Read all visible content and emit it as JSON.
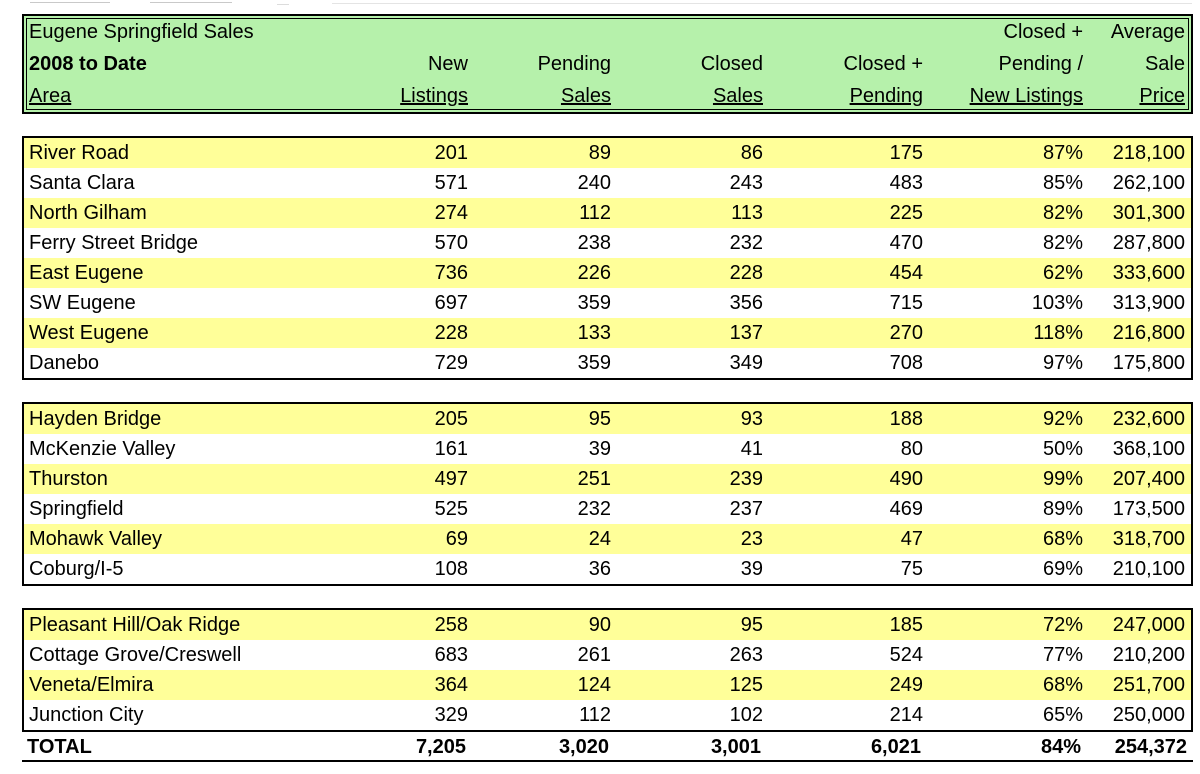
{
  "header": {
    "title": "Eugene Springfield Sales",
    "subtitle": "2008 to Date",
    "area_label": "Area",
    "columns": [
      {
        "line1": "",
        "line2": "New",
        "line3": "Listings"
      },
      {
        "line1": "",
        "line2": "Pending",
        "line3": "Sales"
      },
      {
        "line1": "",
        "line2": "Closed",
        "line3": "Sales"
      },
      {
        "line1": "",
        "line2": "Closed +",
        "line3": "Pending"
      },
      {
        "line1": "Closed +",
        "line2": "Pending /",
        "line3": "New Listings"
      },
      {
        "line1": "Average",
        "line2": "Sale",
        "line3": "Price"
      }
    ]
  },
  "groups": [
    {
      "rows": [
        {
          "area": "River Road",
          "new_listings": "201",
          "pending_sales": "89",
          "closed_sales": "86",
          "closed_pending": "175",
          "ratio": "87%",
          "avg_price": "218,100"
        },
        {
          "area": "Santa Clara",
          "new_listings": "571",
          "pending_sales": "240",
          "closed_sales": "243",
          "closed_pending": "483",
          "ratio": "85%",
          "avg_price": "262,100"
        },
        {
          "area": "North Gilham",
          "new_listings": "274",
          "pending_sales": "112",
          "closed_sales": "113",
          "closed_pending": "225",
          "ratio": "82%",
          "avg_price": "301,300"
        },
        {
          "area": "Ferry Street Bridge",
          "new_listings": "570",
          "pending_sales": "238",
          "closed_sales": "232",
          "closed_pending": "470",
          "ratio": "82%",
          "avg_price": "287,800"
        },
        {
          "area": "East Eugene",
          "new_listings": "736",
          "pending_sales": "226",
          "closed_sales": "228",
          "closed_pending": "454",
          "ratio": "62%",
          "avg_price": "333,600"
        },
        {
          "area": "SW Eugene",
          "new_listings": "697",
          "pending_sales": "359",
          "closed_sales": "356",
          "closed_pending": "715",
          "ratio": "103%",
          "avg_price": "313,900"
        },
        {
          "area": "West Eugene",
          "new_listings": "228",
          "pending_sales": "133",
          "closed_sales": "137",
          "closed_pending": "270",
          "ratio": "118%",
          "avg_price": "216,800"
        },
        {
          "area": "Danebo",
          "new_listings": "729",
          "pending_sales": "359",
          "closed_sales": "349",
          "closed_pending": "708",
          "ratio": "97%",
          "avg_price": "175,800"
        }
      ]
    },
    {
      "rows": [
        {
          "area": "Hayden Bridge",
          "new_listings": "205",
          "pending_sales": "95",
          "closed_sales": "93",
          "closed_pending": "188",
          "ratio": "92%",
          "avg_price": "232,600"
        },
        {
          "area": "McKenzie Valley",
          "new_listings": "161",
          "pending_sales": "39",
          "closed_sales": "41",
          "closed_pending": "80",
          "ratio": "50%",
          "avg_price": "368,100"
        },
        {
          "area": "Thurston",
          "new_listings": "497",
          "pending_sales": "251",
          "closed_sales": "239",
          "closed_pending": "490",
          "ratio": "99%",
          "avg_price": "207,400"
        },
        {
          "area": "Springfield",
          "new_listings": "525",
          "pending_sales": "232",
          "closed_sales": "237",
          "closed_pending": "469",
          "ratio": "89%",
          "avg_price": "173,500"
        },
        {
          "area": "Mohawk Valley",
          "new_listings": "69",
          "pending_sales": "24",
          "closed_sales": "23",
          "closed_pending": "47",
          "ratio": "68%",
          "avg_price": "318,700"
        },
        {
          "area": "Coburg/I-5",
          "new_listings": "108",
          "pending_sales": "36",
          "closed_sales": "39",
          "closed_pending": "75",
          "ratio": "69%",
          "avg_price": "210,100"
        }
      ]
    },
    {
      "rows": [
        {
          "area": "Pleasant Hill/Oak Ridge",
          "new_listings": "258",
          "pending_sales": "90",
          "closed_sales": "95",
          "closed_pending": "185",
          "ratio": "72%",
          "avg_price": "247,000"
        },
        {
          "area": "Cottage Grove/Creswell",
          "new_listings": "683",
          "pending_sales": "261",
          "closed_sales": "263",
          "closed_pending": "524",
          "ratio": "77%",
          "avg_price": "210,200"
        },
        {
          "area": "Veneta/Elmira",
          "new_listings": "364",
          "pending_sales": "124",
          "closed_sales": "125",
          "closed_pending": "249",
          "ratio": "68%",
          "avg_price": "251,700"
        },
        {
          "area": "Junction City",
          "new_listings": "329",
          "pending_sales": "112",
          "closed_sales": "102",
          "closed_pending": "214",
          "ratio": "65%",
          "avg_price": "250,000"
        }
      ]
    }
  ],
  "total": {
    "area": "TOTAL",
    "new_listings": "7,205",
    "pending_sales": "3,020",
    "closed_sales": "3,001",
    "closed_pending": "6,021",
    "ratio": "84%",
    "avg_price": "254,372"
  },
  "colors": {
    "header_bg": "#b6f1ab",
    "row_highlight_bg": "#ffff99",
    "border": "#000000"
  }
}
